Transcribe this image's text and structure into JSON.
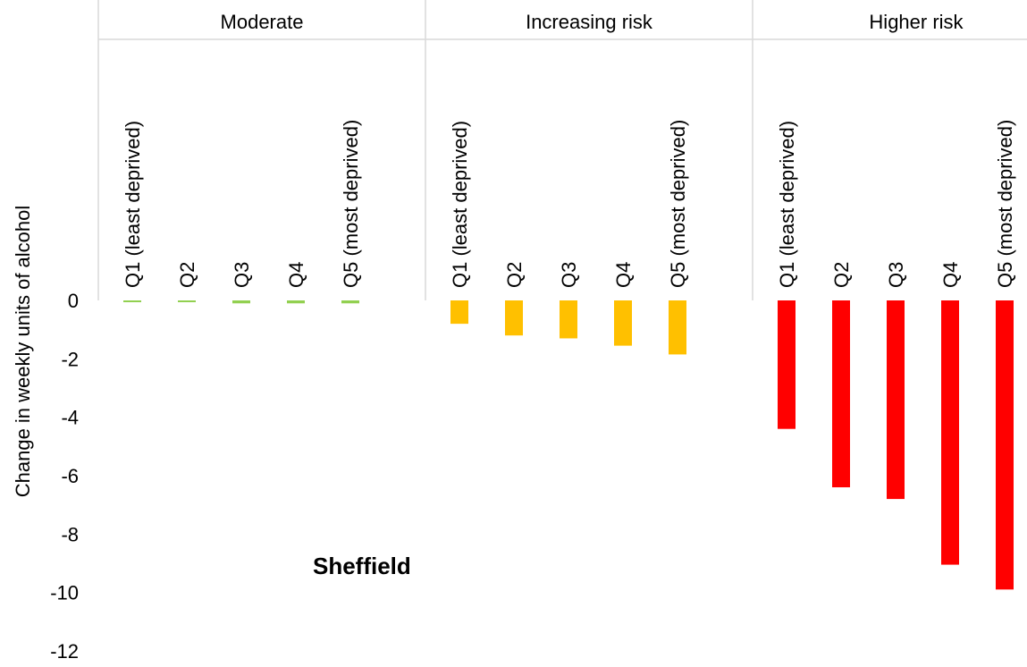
{
  "chart_data": {
    "type": "bar",
    "ylabel": "Change in weekly units of alcohol",
    "ylim": [
      -12,
      0
    ],
    "yticks": [
      0,
      -2,
      -4,
      -6,
      -8,
      -10,
      -12
    ],
    "grid": false,
    "annotation": "Sheffield",
    "groups": [
      {
        "name": "Moderate",
        "color": "#92D050",
        "categories": [
          "Q1  (least deprived)",
          "Q2",
          "Q3",
          "Q4",
          "Q5  (most deprived)"
        ],
        "values": [
          -0.05,
          -0.05,
          -0.1,
          -0.1,
          -0.1
        ]
      },
      {
        "name": "Increasing risk",
        "color": "#FFC000",
        "categories": [
          "Q1  (least deprived)",
          "Q2",
          "Q3",
          "Q4",
          "Q5  (most deprived)"
        ],
        "values": [
          -0.8,
          -1.2,
          -1.3,
          -1.55,
          -1.85
        ]
      },
      {
        "name": "Higher risk",
        "color": "#FF0000",
        "categories": [
          "Q1  (least deprived)",
          "Q2",
          "Q3",
          "Q4",
          "Q5  (most deprived)"
        ],
        "values": [
          -4.4,
          -6.4,
          -6.8,
          -9.05,
          -9.9
        ]
      }
    ]
  }
}
